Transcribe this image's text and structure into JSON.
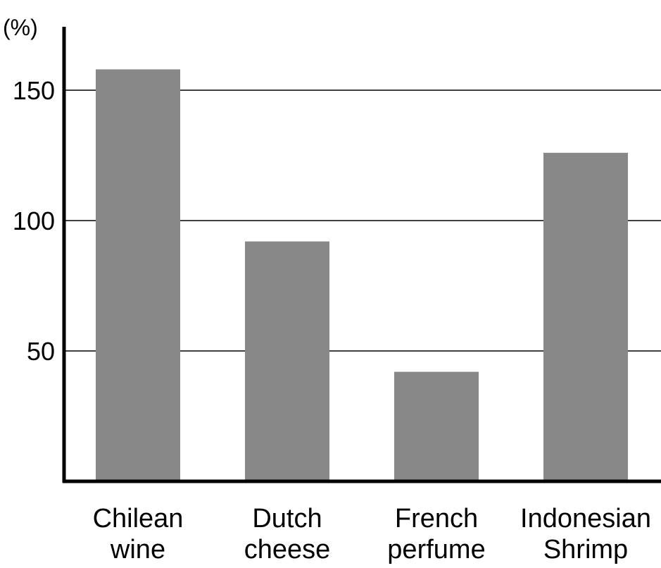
{
  "chart_data": {
    "type": "bar",
    "unit_label": "(%)",
    "categories": [
      [
        "Chilean",
        "wine"
      ],
      [
        "Dutch",
        "cheese"
      ],
      [
        "French",
        "perfume"
      ],
      [
        "Indonesian",
        "Shrimp"
      ]
    ],
    "values": [
      158,
      92,
      42,
      126
    ],
    "yticks": [
      "50",
      "100",
      "150"
    ],
    "ylim": [
      0,
      175
    ],
    "grid": true,
    "colors": {
      "bar": "#888888",
      "axis": "#000000",
      "grid": "#000000"
    }
  }
}
